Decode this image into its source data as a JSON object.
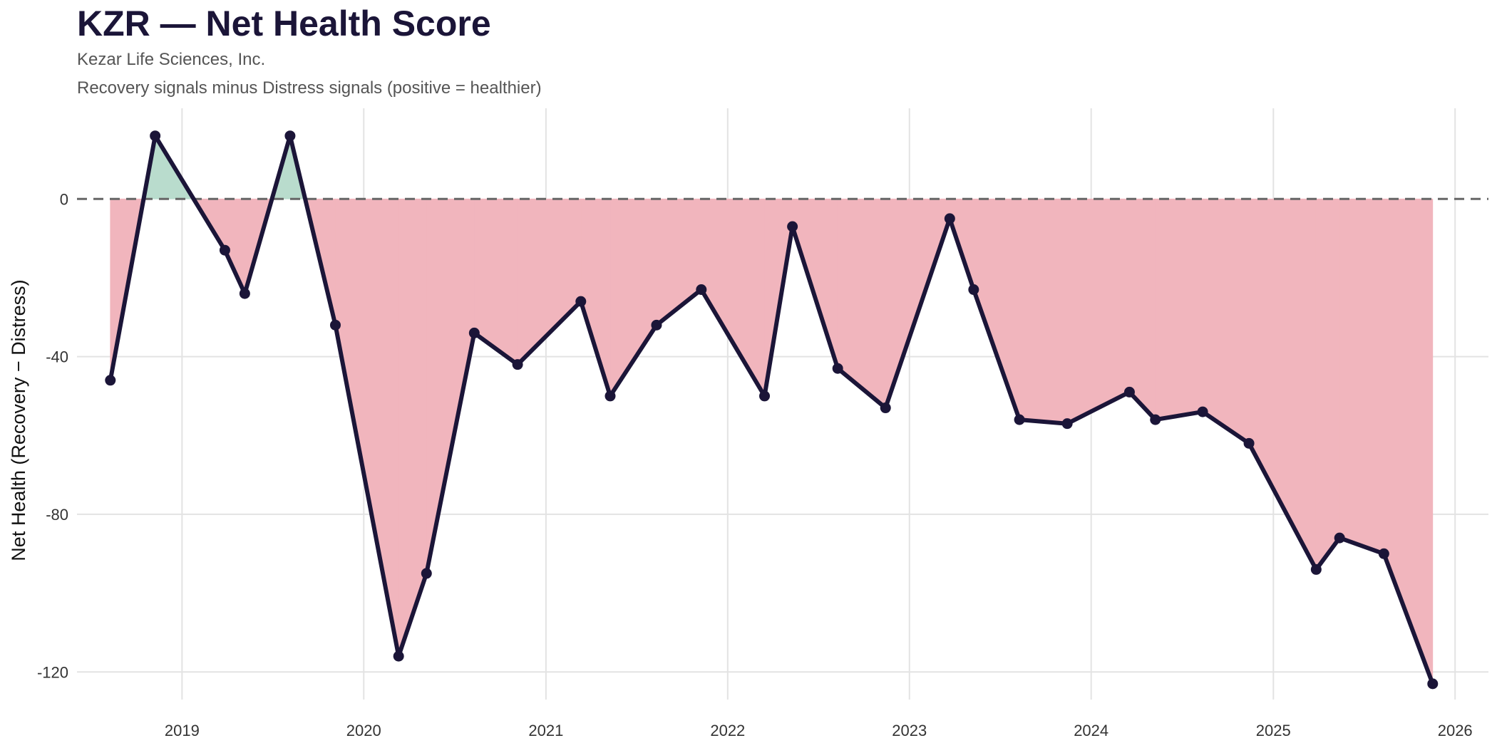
{
  "header": {
    "title": "KZR — Net Health Score",
    "company": "Kezar Life Sciences, Inc.",
    "description": "Recovery signals minus Distress signals (positive = healthier)"
  },
  "colors": {
    "line": "#1b1538",
    "positive_fill": "#b9dccd",
    "negative_fill": "#f1b5bd",
    "grid": "#e3e3e3",
    "zero_line": "#666666"
  },
  "chart_data": {
    "type": "line",
    "title": "KZR — Net Health Score",
    "subtitle": [
      "Kezar Life Sciences, Inc.",
      "Recovery signals minus Distress signals (positive = healthier)"
    ],
    "xlabel": "",
    "ylabel": "Net Health (Recovery − Distress)",
    "x_ticks": [
      "2019",
      "2020",
      "2021",
      "2022",
      "2023",
      "2024",
      "2025",
      "2026"
    ],
    "y_ticks": [
      0,
      -40,
      -80,
      -120
    ],
    "xlim": [
      "2018-06-04",
      "2026-03-09"
    ],
    "ylim": [
      -127,
      23
    ],
    "grid": true,
    "reference_line": {
      "y": 0,
      "style": "dashed"
    },
    "fill": {
      "above_zero": "recovery",
      "below_zero": "distress"
    },
    "points": [
      {
        "date": "2018-08-10",
        "y": -46
      },
      {
        "date": "2018-11-08",
        "y": 16
      },
      {
        "date": "2019-03-28",
        "y": -13
      },
      {
        "date": "2019-05-07",
        "y": -24
      },
      {
        "date": "2019-08-06",
        "y": 16
      },
      {
        "date": "2019-11-05",
        "y": -32
      },
      {
        "date": "2020-03-11",
        "y": -116
      },
      {
        "date": "2020-05-06",
        "y": -95
      },
      {
        "date": "2020-08-10",
        "y": -34
      },
      {
        "date": "2020-11-05",
        "y": -42
      },
      {
        "date": "2021-03-12",
        "y": -26
      },
      {
        "date": "2021-05-10",
        "y": -50
      },
      {
        "date": "2021-08-11",
        "y": -32
      },
      {
        "date": "2021-11-09",
        "y": -23
      },
      {
        "date": "2022-03-16",
        "y": -50
      },
      {
        "date": "2022-05-11",
        "y": -7
      },
      {
        "date": "2022-08-10",
        "y": -43
      },
      {
        "date": "2022-11-14",
        "y": -53
      },
      {
        "date": "2023-03-23",
        "y": -5
      },
      {
        "date": "2023-05-10",
        "y": -23
      },
      {
        "date": "2023-08-10",
        "y": -56
      },
      {
        "date": "2023-11-14",
        "y": -57
      },
      {
        "date": "2024-03-18",
        "y": -49
      },
      {
        "date": "2024-05-09",
        "y": -56
      },
      {
        "date": "2024-08-12",
        "y": -54
      },
      {
        "date": "2024-11-13",
        "y": -62
      },
      {
        "date": "2025-03-28",
        "y": -94
      },
      {
        "date": "2025-05-14",
        "y": -86
      },
      {
        "date": "2025-08-11",
        "y": -90
      },
      {
        "date": "2025-11-17",
        "y": -123
      }
    ]
  }
}
